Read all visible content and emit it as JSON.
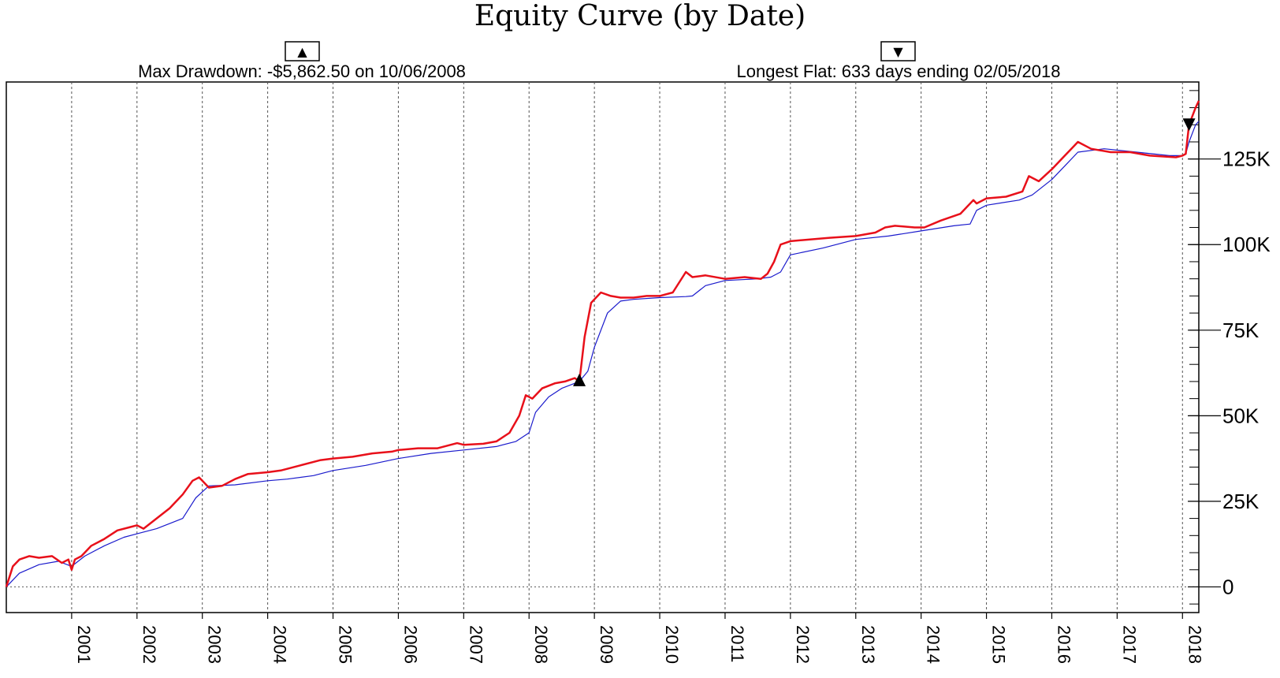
{
  "chart_data": {
    "type": "line",
    "title": "Equity Curve (by Date)",
    "stats": {
      "max_drawdown_label": "Max Drawdown: -$5,862.50 on 10/06/2008",
      "max_drawdown_value": -5862.5,
      "max_drawdown_date": "10/06/2008",
      "longest_flat_label": "Longest Flat: 633 days ending 02/05/2018",
      "longest_flat_days": 633,
      "longest_flat_end": "02/05/2018"
    },
    "markers": {
      "drawdown_button_glyph": "▲",
      "flat_button_glyph": "▼",
      "drawdown_point": {
        "x": 2008.77,
        "y": 60000
      },
      "flat_point": {
        "x": 2018.1,
        "y": 135000
      }
    },
    "xlim": [
      2000.0,
      2018.25
    ],
    "ylim": [
      -7500,
      147500
    ],
    "x_tick_labels": [
      "2001",
      "2002",
      "2003",
      "2004",
      "2005",
      "2006",
      "2007",
      "2008",
      "2009",
      "2010",
      "2011",
      "2012",
      "2013",
      "2014",
      "2015",
      "2016",
      "2017",
      "2018"
    ],
    "x_ticks": [
      2001,
      2002,
      2003,
      2004,
      2005,
      2006,
      2007,
      2008,
      2009,
      2010,
      2011,
      2012,
      2013,
      2014,
      2015,
      2016,
      2017,
      2018
    ],
    "y_ticks": [
      0,
      25000,
      50000,
      75000,
      100000,
      125000
    ],
    "y_tick_labels": [
      "0",
      "25K",
      "50K",
      "75K",
      "100K",
      "125K"
    ],
    "y_minor_step": 5000,
    "grid": {
      "vertical_dashed": true,
      "zero_line_dotted": true
    },
    "colors": {
      "equity": "#e8101a",
      "average": "#1a1acc",
      "grid": "#555555"
    },
    "series": [
      {
        "role": "equity",
        "x": [
          2000.0,
          2000.1,
          2000.2,
          2000.35,
          2000.5,
          2000.7,
          2000.85,
          2000.95,
          2001.0,
          2001.05,
          2001.15,
          2001.3,
          2001.5,
          2001.7,
          2001.9,
          2002.0,
          2002.1,
          2002.3,
          2002.5,
          2002.7,
          2002.85,
          2002.95,
          2003.1,
          2003.3,
          2003.5,
          2003.7,
          2004.0,
          2004.2,
          2004.5,
          2004.8,
          2005.0,
          2005.3,
          2005.6,
          2005.9,
          2006.0,
          2006.3,
          2006.6,
          2006.9,
          2007.0,
          2007.3,
          2007.5,
          2007.7,
          2007.85,
          2007.95,
          2008.05,
          2008.2,
          2008.4,
          2008.55,
          2008.7,
          2008.77,
          2008.85,
          2008.95,
          2009.1,
          2009.25,
          2009.4,
          2009.6,
          2009.8,
          2010.0,
          2010.2,
          2010.4,
          2010.5,
          2010.7,
          2011.0,
          2011.3,
          2011.55,
          2011.65,
          2011.75,
          2011.85,
          2012.0,
          2012.3,
          2012.6,
          2013.0,
          2013.3,
          2013.45,
          2013.6,
          2013.9,
          2014.05,
          2014.3,
          2014.6,
          2014.8,
          2014.85,
          2015.0,
          2015.3,
          2015.55,
          2015.65,
          2015.8,
          2016.0,
          2016.2,
          2016.3,
          2016.4,
          2016.6,
          2016.9,
          2017.2,
          2017.5,
          2017.9,
          2018.0,
          2018.05,
          2018.1,
          2018.2,
          2018.25
        ],
        "y": [
          0,
          6000,
          8000,
          9000,
          8500,
          9000,
          7000,
          8000,
          5000,
          8000,
          9000,
          12000,
          14000,
          16500,
          17500,
          18000,
          17000,
          20000,
          23000,
          27000,
          31000,
          32000,
          29000,
          29500,
          31500,
          33000,
          33500,
          34000,
          35500,
          37000,
          37500,
          38000,
          39000,
          39500,
          40000,
          40500,
          40500,
          42000,
          41500,
          41800,
          42500,
          45000,
          50000,
          56000,
          55000,
          58000,
          59500,
          60000,
          61000,
          60000,
          73000,
          83000,
          86000,
          85000,
          84500,
          84500,
          85000,
          85000,
          86000,
          92000,
          90500,
          91000,
          90000,
          90500,
          90000,
          91500,
          95000,
          100000,
          101000,
          101500,
          102000,
          102500,
          103500,
          105000,
          105500,
          105000,
          105000,
          107000,
          109000,
          113000,
          112000,
          113500,
          114000,
          115500,
          120000,
          118500,
          122000,
          126000,
          128000,
          130000,
          128000,
          127000,
          127000,
          126000,
          125500,
          126000,
          126500,
          135000,
          140000,
          142000
        ]
      },
      {
        "role": "average",
        "x": [
          2000.0,
          2000.2,
          2000.5,
          2000.8,
          2001.0,
          2001.2,
          2001.5,
          2001.8,
          2002.0,
          2002.3,
          2002.5,
          2002.7,
          2002.9,
          2003.1,
          2003.5,
          2004.0,
          2004.3,
          2004.7,
          2005.0,
          2005.5,
          2006.0,
          2006.5,
          2007.0,
          2007.5,
          2007.8,
          2008.0,
          2008.1,
          2008.3,
          2008.5,
          2008.77,
          2008.9,
          2009.0,
          2009.2,
          2009.4,
          2009.6,
          2010.0,
          2010.4,
          2010.5,
          2010.7,
          2011.0,
          2011.5,
          2011.7,
          2011.85,
          2012.0,
          2012.5,
          2013.0,
          2013.5,
          2014.0,
          2014.5,
          2014.75,
          2014.85,
          2015.0,
          2015.5,
          2015.7,
          2016.0,
          2016.2,
          2016.4,
          2016.8,
          2017.3,
          2017.8,
          2018.0,
          2018.05,
          2018.1,
          2018.2,
          2018.25
        ],
        "y": [
          0,
          4000,
          6500,
          7500,
          6000,
          9000,
          12000,
          14500,
          15500,
          17000,
          18500,
          20000,
          26000,
          29500,
          29800,
          31000,
          31500,
          32500,
          34000,
          35500,
          37500,
          39000,
          40000,
          41000,
          42500,
          45000,
          51000,
          55500,
          58000,
          60000,
          63000,
          70000,
          80000,
          83500,
          84000,
          84500,
          84800,
          85000,
          88000,
          89500,
          90000,
          90500,
          92000,
          97000,
          99000,
          101500,
          102500,
          104000,
          105500,
          106000,
          110000,
          111500,
          113000,
          114500,
          119000,
          123000,
          127000,
          128000,
          127000,
          126000,
          126000,
          126500,
          130000,
          135000,
          136000
        ]
      }
    ]
  }
}
